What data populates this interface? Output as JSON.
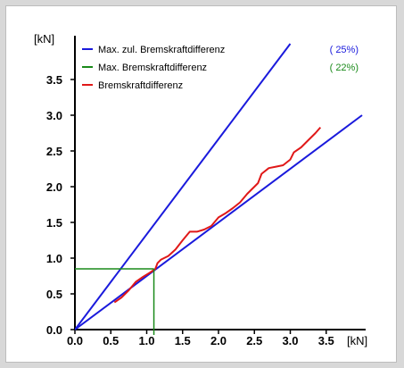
{
  "chart_data": {
    "type": "line",
    "x_unit": "[kN]",
    "y_unit": "[kN]",
    "xlim": [
      0,
      4.0
    ],
    "ylim": [
      0,
      3.9
    ],
    "x_ticks": [
      "0.0",
      "0.5",
      "1.0",
      "1.5",
      "2.0",
      "2.5",
      "3.0",
      "3.5"
    ],
    "y_ticks": [
      "0.0",
      "0.5",
      "1.0",
      "1.5",
      "2.0",
      "2.5",
      "3.0",
      "3.5"
    ],
    "grid": false,
    "legend_position": "top",
    "series": [
      {
        "name": "Max. zul. Bremskraftdifferenz",
        "percent": "( 25%)",
        "color": "#1a1adc",
        "kind": "upper_limit",
        "points": [
          [
            0,
            0
          ],
          [
            3.0,
            4.0
          ]
        ]
      },
      {
        "name": "",
        "percent": "",
        "color": "#1a1adc",
        "kind": "lower_limit",
        "points": [
          [
            0,
            0
          ],
          [
            4.0,
            3.0
          ]
        ]
      },
      {
        "name": "Max. Bremskraftdifferenz",
        "percent": "( 22%)",
        "color": "#1a8a1a",
        "kind": "marker",
        "point": [
          1.1,
          0.85
        ]
      },
      {
        "name": "Bremskraftdifferenz",
        "percent": "",
        "color": "#e01818",
        "kind": "measured",
        "points": [
          [
            0.55,
            0.38
          ],
          [
            0.65,
            0.45
          ],
          [
            0.75,
            0.55
          ],
          [
            0.85,
            0.67
          ],
          [
            0.95,
            0.74
          ],
          [
            1.05,
            0.8
          ],
          [
            1.12,
            0.85
          ],
          [
            1.15,
            0.93
          ],
          [
            1.2,
            0.98
          ],
          [
            1.3,
            1.03
          ],
          [
            1.4,
            1.12
          ],
          [
            1.5,
            1.25
          ],
          [
            1.6,
            1.37
          ],
          [
            1.7,
            1.37
          ],
          [
            1.8,
            1.4
          ],
          [
            1.9,
            1.45
          ],
          [
            2.0,
            1.57
          ],
          [
            2.1,
            1.63
          ],
          [
            2.2,
            1.7
          ],
          [
            2.3,
            1.78
          ],
          [
            2.4,
            1.9
          ],
          [
            2.5,
            2.0
          ],
          [
            2.55,
            2.05
          ],
          [
            2.6,
            2.18
          ],
          [
            2.7,
            2.26
          ],
          [
            2.8,
            2.28
          ],
          [
            2.9,
            2.3
          ],
          [
            3.0,
            2.38
          ],
          [
            3.05,
            2.48
          ],
          [
            3.15,
            2.55
          ],
          [
            3.25,
            2.65
          ],
          [
            3.35,
            2.75
          ],
          [
            3.42,
            2.83
          ]
        ]
      }
    ]
  }
}
